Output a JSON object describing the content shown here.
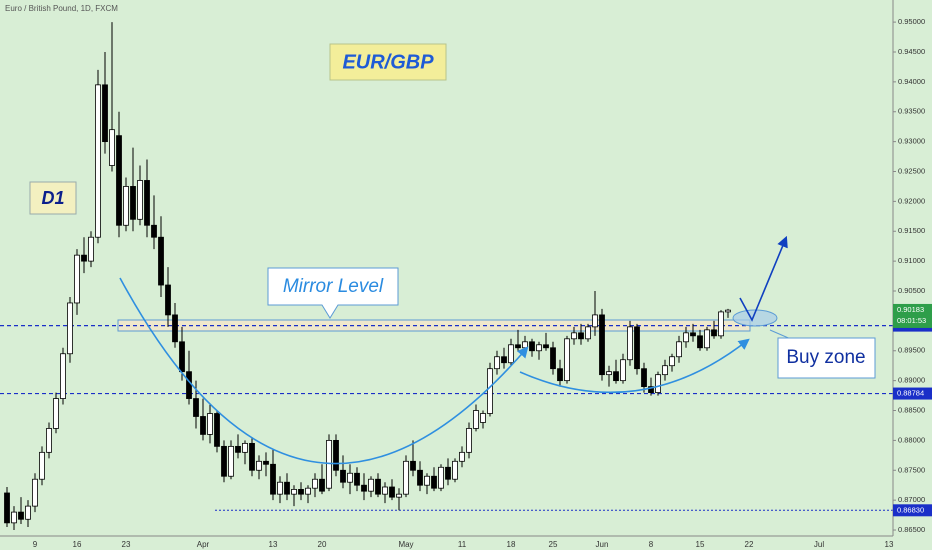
{
  "chart_data": {
    "type": "candlestick",
    "title": "Euro / British Pound, 1D, FXCM",
    "annotations": {
      "pair": "EUR/GBP",
      "timeframe": "D1",
      "mirror": "Mirror Level",
      "buy": "Buy zone"
    },
    "categories": [
      null,
      null,
      null,
      null,
      "9",
      null,
      null,
      null,
      null,
      null,
      "16",
      null,
      null,
      null,
      null,
      null,
      null,
      "23",
      null,
      null,
      null,
      null,
      null,
      null,
      null,
      null,
      null,
      null,
      "Apr",
      null,
      null,
      null,
      null,
      null,
      null,
      null,
      null,
      null,
      "13",
      null,
      null,
      null,
      null,
      null,
      null,
      "20",
      null,
      null,
      null,
      null,
      null,
      null,
      null,
      null,
      null,
      null,
      null,
      "May",
      null,
      null,
      null,
      null,
      null,
      null,
      null,
      "11",
      null,
      null,
      null,
      null,
      null,
      null,
      "18",
      null,
      null,
      null,
      null,
      null,
      "25",
      null,
      null,
      null,
      null,
      null,
      null,
      "Jun",
      null,
      null,
      null,
      null,
      null,
      null,
      "8",
      null,
      null,
      null,
      null,
      null,
      null,
      "15",
      null,
      null,
      null,
      null,
      null,
      null,
      "22",
      null,
      null,
      null,
      null,
      null,
      null,
      null,
      null,
      null,
      "Jul",
      null,
      null,
      null,
      null,
      null,
      null,
      null,
      null,
      null,
      "13"
    ],
    "open": [
      0.8712,
      0.8662,
      0.868,
      0.8668,
      0.869,
      0.8735,
      0.878,
      0.882,
      0.887,
      0.8945,
      0.903,
      0.911,
      0.91,
      0.914,
      0.9395,
      0.926,
      0.931,
      0.916,
      0.9225,
      0.917,
      0.9235,
      0.916,
      0.914,
      0.906,
      0.901,
      0.8965,
      0.8915,
      0.887,
      0.884,
      0.881,
      0.8845,
      0.879,
      0.874,
      0.879,
      0.878,
      0.8795,
      0.875,
      0.8765,
      0.876,
      0.871,
      0.873,
      0.871,
      0.8718,
      0.871,
      0.872,
      0.8735,
      0.872,
      0.88,
      0.875,
      0.873,
      0.8745,
      0.8725,
      0.8715,
      0.8735,
      0.871,
      0.8722,
      0.8705,
      0.871,
      0.8765,
      0.875,
      0.8725,
      0.874,
      0.872,
      0.8755,
      0.8735,
      0.8765,
      0.878,
      0.882,
      0.883,
      0.8845,
      0.892,
      0.894,
      0.893,
      0.896,
      0.8955,
      0.8965,
      0.895,
      0.896,
      0.8955,
      0.892,
      0.89,
      0.897,
      0.898,
      0.897,
      0.899,
      0.901,
      0.891,
      0.8915,
      0.89,
      0.8935,
      0.899,
      0.892,
      0.889,
      0.888,
      0.891,
      0.8925,
      0.894,
      0.8965,
      0.898,
      0.8975,
      0.8955,
      0.8985,
      0.8975,
      0.9015,
      null,
      null,
      null,
      null,
      null,
      null,
      null,
      null,
      null,
      null,
      null,
      null,
      null,
      null,
      null,
      null,
      null,
      null,
      null,
      null,
      null,
      null,
      null
    ],
    "high": [
      0.8722,
      0.869,
      0.8705,
      0.87,
      0.8745,
      0.879,
      0.883,
      0.888,
      0.8955,
      0.904,
      0.912,
      0.914,
      0.915,
      0.942,
      0.945,
      0.95,
      0.935,
      0.924,
      0.929,
      0.926,
      0.927,
      0.921,
      0.9175,
      0.909,
      0.903,
      0.899,
      0.895,
      0.89,
      0.887,
      0.886,
      0.885,
      0.88,
      0.88,
      0.881,
      0.88,
      0.8805,
      0.8775,
      0.878,
      0.8785,
      0.874,
      0.8745,
      0.8725,
      0.873,
      0.8725,
      0.8745,
      0.876,
      0.881,
      0.881,
      0.8775,
      0.876,
      0.8755,
      0.8745,
      0.874,
      0.8745,
      0.873,
      0.8735,
      0.872,
      0.8775,
      0.88,
      0.8765,
      0.8745,
      0.8755,
      0.876,
      0.877,
      0.877,
      0.879,
      0.883,
      0.886,
      0.885,
      0.893,
      0.895,
      0.8955,
      0.897,
      0.8985,
      0.8975,
      0.897,
      0.8965,
      0.898,
      0.8965,
      0.8935,
      0.8975,
      0.899,
      0.8995,
      0.8995,
      0.905,
      0.902,
      0.8925,
      0.8935,
      0.8945,
      0.9,
      0.8995,
      0.893,
      0.8905,
      0.8915,
      0.8935,
      0.8945,
      0.8975,
      0.899,
      0.8995,
      0.8985,
      0.899,
      0.9,
      0.9018,
      0.902,
      null,
      null,
      null,
      null,
      null,
      null,
      null,
      null,
      null,
      null,
      null,
      null,
      null,
      null,
      null,
      null,
      null,
      null,
      null,
      null,
      null,
      null,
      null
    ],
    "low": [
      0.8655,
      0.865,
      0.866,
      0.8655,
      0.868,
      0.8725,
      0.877,
      0.8812,
      0.886,
      0.893,
      0.901,
      0.908,
      0.909,
      0.913,
      0.928,
      0.925,
      0.914,
      0.915,
      0.915,
      0.916,
      0.914,
      0.912,
      0.904,
      0.899,
      0.8955,
      0.89,
      0.886,
      0.882,
      0.88,
      0.8795,
      0.878,
      0.873,
      0.8735,
      0.877,
      0.876,
      0.874,
      0.8735,
      0.874,
      0.87,
      0.8695,
      0.87,
      0.869,
      0.87,
      0.8695,
      0.8705,
      0.871,
      0.8715,
      0.874,
      0.872,
      0.871,
      0.8715,
      0.87,
      0.8705,
      0.8705,
      0.8695,
      0.87,
      0.8683,
      0.8705,
      0.874,
      0.8715,
      0.871,
      0.8715,
      0.8715,
      0.8725,
      0.873,
      0.8755,
      0.877,
      0.8815,
      0.882,
      0.884,
      0.891,
      0.892,
      0.8925,
      0.895,
      0.8945,
      0.894,
      0.8935,
      0.895,
      0.891,
      0.889,
      0.8895,
      0.896,
      0.896,
      0.8965,
      0.8975,
      0.89,
      0.889,
      0.8895,
      0.8895,
      0.8925,
      0.891,
      0.888,
      0.8875,
      0.8875,
      0.89,
      0.8915,
      0.893,
      0.8955,
      0.8965,
      0.895,
      0.895,
      0.897,
      0.897,
      0.9005,
      null,
      null,
      null,
      null,
      null,
      null,
      null,
      null,
      null,
      null,
      null,
      null,
      null,
      null,
      null,
      null,
      null,
      null,
      null,
      null,
      null,
      null,
      null
    ],
    "close": [
      0.8662,
      0.868,
      0.8668,
      0.869,
      0.8735,
      0.878,
      0.882,
      0.887,
      0.8945,
      0.903,
      0.911,
      0.91,
      0.914,
      0.9395,
      0.93,
      0.932,
      0.916,
      0.9225,
      0.917,
      0.9235,
      0.916,
      0.914,
      0.906,
      0.901,
      0.8965,
      0.8915,
      0.887,
      0.884,
      0.881,
      0.8845,
      0.879,
      0.874,
      0.879,
      0.878,
      0.8795,
      0.875,
      0.8765,
      0.876,
      0.871,
      0.873,
      0.871,
      0.8718,
      0.871,
      0.872,
      0.8735,
      0.8715,
      0.88,
      0.875,
      0.873,
      0.8745,
      0.8725,
      0.8715,
      0.8735,
      0.871,
      0.8722,
      0.8705,
      0.871,
      0.8765,
      0.875,
      0.8725,
      0.874,
      0.872,
      0.8755,
      0.8735,
      0.8765,
      0.878,
      0.882,
      0.885,
      0.8845,
      0.892,
      0.894,
      0.893,
      0.896,
      0.8955,
      0.8965,
      0.895,
      0.896,
      0.8955,
      0.892,
      0.89,
      0.897,
      0.898,
      0.897,
      0.899,
      0.901,
      0.891,
      0.8915,
      0.89,
      0.8935,
      0.899,
      0.892,
      0.889,
      0.888,
      0.891,
      0.8925,
      0.894,
      0.8965,
      0.898,
      0.8975,
      0.8955,
      0.8985,
      0.8975,
      0.9015,
      0.9018,
      null,
      null,
      null,
      null,
      null,
      null,
      null,
      null,
      null,
      null,
      null,
      null,
      null,
      null,
      null,
      null,
      null,
      null,
      null,
      null,
      null,
      null,
      null
    ],
    "ylim": [
      0.864,
      0.9537
    ],
    "yticks": [
      {
        "value": 0.95,
        "label": "0.95000"
      },
      {
        "value": 0.945,
        "label": "0.94500"
      },
      {
        "value": 0.94,
        "label": "0.94000"
      },
      {
        "value": 0.935,
        "label": "0.93500"
      },
      {
        "value": 0.93,
        "label": "0.93000"
      },
      {
        "value": 0.925,
        "label": "0.92500"
      },
      {
        "value": 0.92,
        "label": "0.92000"
      },
      {
        "value": 0.915,
        "label": "0.91500"
      },
      {
        "value": 0.91,
        "label": "0.91000"
      },
      {
        "value": 0.905,
        "label": "0.90500"
      },
      {
        "value": 0.895,
        "label": "0.89500"
      },
      {
        "value": 0.89,
        "label": "0.89000"
      },
      {
        "value": 0.885,
        "label": "0.88500"
      },
      {
        "value": 0.88,
        "label": "0.88000"
      },
      {
        "value": 0.875,
        "label": "0.87500"
      },
      {
        "value": 0.87,
        "label": "0.87000"
      },
      {
        "value": 0.865,
        "label": "0.86500"
      }
    ],
    "grid": false,
    "price_lines": [
      0.89921,
      0.88784,
      {
        "value": 0.8683,
        "label": "0.86830"
      }
    ],
    "last_price": 0.90183,
    "countdown": "08:01:53"
  }
}
